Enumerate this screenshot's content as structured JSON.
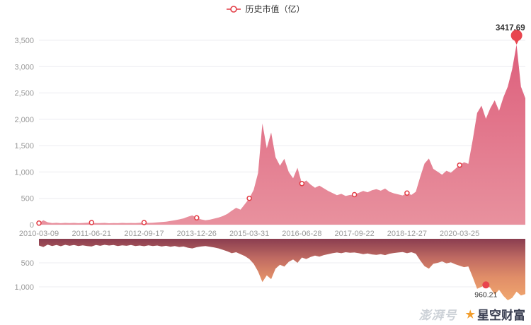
{
  "legend": {
    "label": "历史市值（亿）"
  },
  "watermark": {
    "platform": "澎湃号",
    "brand": "星空财富"
  },
  "colors": {
    "area_top": "#dd5f7c",
    "area_bottom": "#e8919e",
    "mirror_g1": "#8a3d50",
    "mirror_g2": "#bf6a62",
    "mirror_g3": "#e08d68",
    "mirror_g4": "#f2a96f",
    "marker_stroke": "#e23c45",
    "pin": "#e8454e",
    "grid": "#ececf0",
    "axis_text": "#999999",
    "value_text": "#333333"
  },
  "chart_data": [
    {
      "type": "area",
      "title": "历史市值（亿）",
      "ylim": [
        0,
        3500
      ],
      "ytick_step": 500,
      "ytick_labels": [
        "0",
        "500",
        "1,000",
        "1,500",
        "2,000",
        "2,500",
        "3,000",
        "3,500"
      ],
      "x_tick_labels": [
        "2010-03-09",
        "2011-06-21",
        "2012-09-17",
        "2013-12-26",
        "2015-03-31",
        "2016-06-28",
        "2017-09-22",
        "2018-12-27",
        "2020-03-25"
      ],
      "x_tick_indices": [
        0,
        12,
        24,
        36,
        48,
        60,
        72,
        84,
        96
      ],
      "grid": true,
      "legend_position": "top-center",
      "values": [
        30,
        85,
        45,
        30,
        35,
        28,
        33,
        29,
        34,
        28,
        32,
        36,
        40,
        31,
        29,
        33,
        27,
        31,
        28,
        33,
        29,
        32,
        30,
        35,
        40,
        34,
        38,
        44,
        50,
        58,
        70,
        85,
        100,
        120,
        150,
        175,
        130,
        100,
        85,
        95,
        115,
        135,
        165,
        205,
        265,
        320,
        285,
        390,
        500,
        660,
        980,
        1920,
        1450,
        1750,
        1280,
        1120,
        1250,
        1000,
        880,
        1080,
        780,
        840,
        760,
        700,
        740,
        690,
        640,
        600,
        560,
        585,
        545,
        565,
        570,
        605,
        640,
        615,
        655,
        675,
        645,
        685,
        625,
        595,
        575,
        555,
        600,
        565,
        625,
        905,
        1160,
        1255,
        1060,
        1005,
        950,
        1025,
        985,
        1060,
        1130,
        1185,
        1155,
        1610,
        2120,
        2260,
        2010,
        2210,
        2360,
        2160,
        2420,
        2620,
        2950,
        3417.69,
        2620,
        2400
      ],
      "peak": {
        "index": 109,
        "value": 3417.69,
        "label": "3417.69"
      }
    },
    {
      "type": "area-inverted",
      "ylim": [
        0,
        1300
      ],
      "ytick_values": [
        500,
        1000
      ],
      "ytick_labels": [
        "500",
        "1,000"
      ],
      "values": [
        140,
        170,
        120,
        150,
        130,
        155,
        125,
        145,
        130,
        150,
        135,
        150,
        160,
        130,
        145,
        125,
        140,
        130,
        150,
        135,
        145,
        130,
        150,
        140,
        155,
        135,
        150,
        140,
        160,
        145,
        165,
        150,
        170,
        160,
        185,
        200,
        175,
        160,
        150,
        165,
        180,
        200,
        230,
        260,
        300,
        280,
        320,
        360,
        420,
        520,
        680,
        900,
        760,
        840,
        620,
        540,
        580,
        480,
        430,
        500,
        390,
        420,
        380,
        350,
        370,
        340,
        320,
        300,
        285,
        300,
        280,
        290,
        285,
        300,
        320,
        305,
        325,
        335,
        320,
        340,
        310,
        295,
        285,
        275,
        300,
        280,
        310,
        450,
        570,
        620,
        520,
        500,
        470,
        510,
        490,
        530,
        560,
        590,
        575,
        800,
        1040,
        1000,
        960.21,
        1020,
        1160,
        1060,
        1190,
        1280,
        1230,
        1100,
        1180,
        1150
      ],
      "marker": {
        "index": 102,
        "value": 960.21,
        "label": "960.21"
      }
    }
  ]
}
